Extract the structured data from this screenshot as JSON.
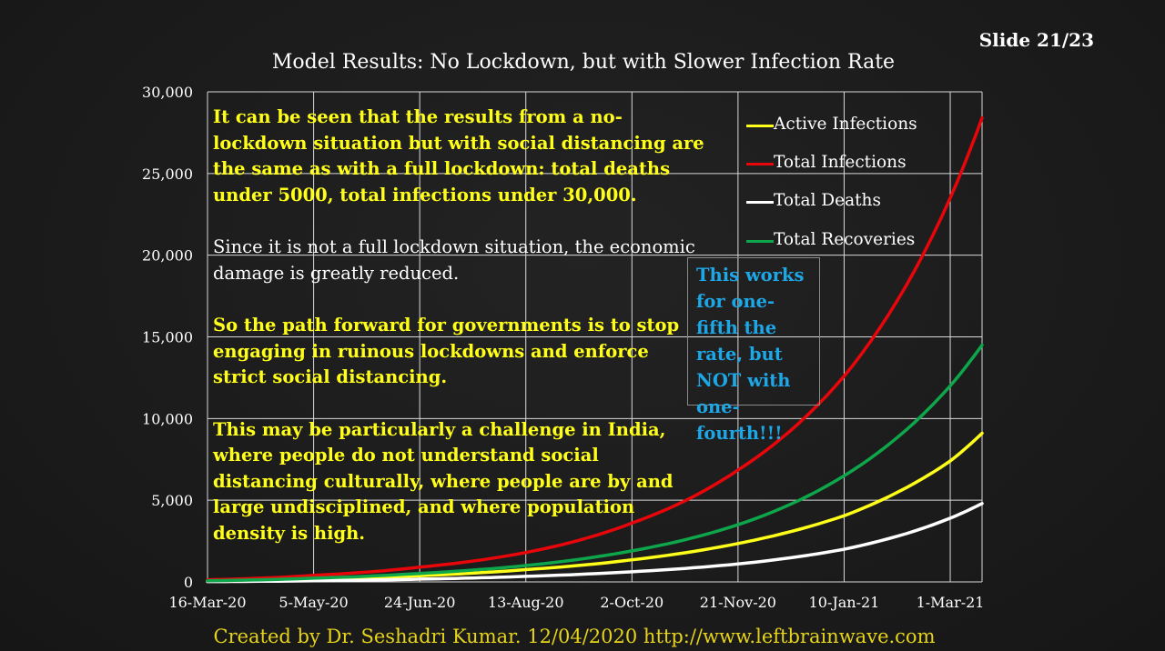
{
  "slide_number": "Slide 21/23",
  "footer": "Created by Dr. Seshadri Kumar. 12/04/2020 http://www.leftbrainwave.com",
  "notes": {
    "p1": "It can be seen that the results from a no-lockdown situation but with social distancing are the same as with a full lockdown: total deaths under 5000, total infections under 30,000.",
    "p2": "Since it is not a full lockdown situation, the economic damage is greatly reduced.",
    "p3": "So the path forward for governments is to stop engaging in ruinous lockdowns and enforce strict social distancing.",
    "p4": "This may be particularly a challenge in India, where people do not understand social distancing culturally, where people are by and large undisciplined, and where population density is high."
  },
  "callout": "This works for one-fifth the rate, but NOT with one-fourth!!!",
  "colors": {
    "note_yellow": "#ffff1a",
    "callout_blue": "#1ea7e6",
    "footer_gold": "#e5d31c"
  },
  "chart_data": {
    "type": "line",
    "title": "Model Results: No Lockdown, but with Slower Infection Rate",
    "xlabel": "",
    "ylabel": "",
    "x_tick_labels": [
      "16-Mar-20",
      "5-May-20",
      "24-Jun-20",
      "13-Aug-20",
      "2-Oct-20",
      "21-Nov-20",
      "10-Jan-21",
      "1-Mar-21"
    ],
    "x_tick_days": [
      0,
      50,
      100,
      150,
      200,
      250,
      300,
      350
    ],
    "x_range_days": [
      0,
      365
    ],
    "y_ticks": [
      0,
      5000,
      10000,
      15000,
      20000,
      25000,
      30000
    ],
    "y_tick_labels": [
      "0",
      "5,000",
      "10,000",
      "15,000",
      "20,000",
      "25,000",
      "30,000"
    ],
    "ylim": [
      0,
      30000
    ],
    "grid": true,
    "legend_position": "top-right",
    "x_days": [
      0,
      50,
      100,
      150,
      200,
      250,
      300,
      350,
      365
    ],
    "series": [
      {
        "name": "Active Infections",
        "color": "#ffff1a",
        "values": [
          60,
          170,
          380,
          750,
          1350,
          2350,
          4050,
          7400,
          9100
        ]
      },
      {
        "name": "Total Infections",
        "color": "#e8060a",
        "values": [
          130,
          400,
          900,
          1800,
          3600,
          6850,
          12600,
          23500,
          28400
        ]
      },
      {
        "name": "Total Deaths",
        "color": "#ffffff",
        "values": [
          20,
          70,
          170,
          340,
          620,
          1100,
          2000,
          3900,
          4800
        ]
      },
      {
        "name": "Total Recoveries",
        "color": "#0ea64a",
        "values": [
          70,
          230,
          520,
          1000,
          1900,
          3500,
          6500,
          12000,
          14500
        ]
      }
    ]
  }
}
